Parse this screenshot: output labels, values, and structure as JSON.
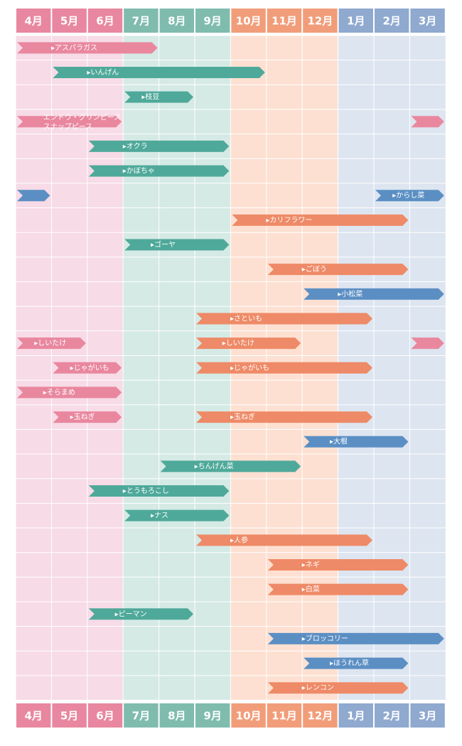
{
  "months": [
    "4月",
    "5月",
    "6月",
    "7月",
    "8月",
    "9月",
    "10月",
    "11月",
    "12月",
    "1月",
    "2月",
    "3月"
  ],
  "rows": [
    {
      "segments": [
        {
          "from": "4月",
          "to": "7月",
          "color": "#e9879f",
          "label": "▸アスパラガス"
        }
      ]
    },
    {
      "segments": [
        {
          "from": "5月",
          "to": "10月",
          "color": "#4fa99a",
          "label": "▸いんげん"
        }
      ]
    },
    {
      "segments": [
        {
          "from": "7月",
          "to": "8月",
          "color": "#4fa99a",
          "label": "▸枝豆"
        }
      ]
    },
    {
      "segments": [
        {
          "from": "4月",
          "to": "6月",
          "color": "#e9879f",
          "label": "エンドウ・グリンピース"
        },
        {
          "from": "3月",
          "to": "3月",
          "color": "#e9879f"
        }
      ],
      "label2": "スナップピース"
    },
    {
      "segments": [
        {
          "from": "6月",
          "to": "9月",
          "color": "#4fa99a",
          "label": "▸オクラ"
        }
      ]
    },
    {
      "segments": [
        {
          "from": "6月",
          "to": "9月",
          "color": "#4fa99a",
          "label": "▸かぼちゃ"
        }
      ]
    },
    {
      "segments": [
        {
          "from": "4月",
          "to": "4月",
          "color": "#5b8fc4"
        },
        {
          "from": "2月",
          "to": "3月",
          "color": "#5b8fc4",
          "label": "▸からし菜"
        }
      ]
    },
    {
      "segments": [
        {
          "from": "10月",
          "to": "2月",
          "color": "#ee8a67",
          "label": "▸カリフラワー"
        }
      ]
    },
    {
      "segments": [
        {
          "from": "7月",
          "to": "9月",
          "color": "#4fa99a",
          "label": "▸ゴーヤ"
        }
      ]
    },
    {
      "segments": [
        {
          "from": "11月",
          "to": "2月",
          "color": "#ee8a67",
          "label": "▸ごぼう"
        }
      ]
    },
    {
      "segments": [
        {
          "from": "12月",
          "to": "3月",
          "color": "#5b8fc4",
          "label": "▸小松菜"
        }
      ]
    },
    {
      "segments": [
        {
          "from": "9月",
          "to": "1月",
          "color": "#ee8a67",
          "label": "▸さといも"
        }
      ]
    },
    {
      "segments": [
        {
          "from": "4月",
          "to": "5月",
          "color": "#e9879f",
          "label": "▸しいたけ"
        },
        {
          "from": "9月",
          "to": "11月",
          "color": "#ee8a67",
          "label": "▸しいたけ"
        },
        {
          "from": "3月",
          "to": "3月",
          "color": "#e9879f"
        }
      ]
    },
    {
      "segments": [
        {
          "from": "5月",
          "to": "6月",
          "color": "#e9879f",
          "label": "▸じゃがいも"
        },
        {
          "from": "9月",
          "to": "1月",
          "color": "#ee8a67",
          "label": "▸じゃがいも"
        }
      ]
    },
    {
      "segments": [
        {
          "from": "4月",
          "to": "6月",
          "color": "#e9879f",
          "label": "▸そらまめ"
        }
      ]
    },
    {
      "segments": [
        {
          "from": "5月",
          "to": "6月",
          "color": "#e9879f",
          "label": "▸玉ねぎ"
        },
        {
          "from": "9月",
          "to": "1月",
          "color": "#ee8a67",
          "label": "▸玉ねぎ"
        }
      ]
    },
    {
      "segments": [
        {
          "from": "12月",
          "to": "2月",
          "color": "#5b8fc4",
          "label": "▸大根"
        }
      ]
    },
    {
      "segments": [
        {
          "from": "8月",
          "to": "11月",
          "color": "#4fa99a",
          "label": "▸ちんげん菜"
        }
      ]
    },
    {
      "segments": [
        {
          "from": "6月",
          "to": "9月",
          "color": "#4fa99a",
          "label": "▸とうもろこし"
        }
      ]
    },
    {
      "segments": [
        {
          "from": "7月",
          "to": "9月",
          "color": "#4fa99a",
          "label": "▸ナス"
        }
      ]
    },
    {
      "segments": [
        {
          "from": "9月",
          "to": "1月",
          "color": "#ee8a67",
          "label": "▸人参"
        }
      ]
    },
    {
      "segments": [
        {
          "from": "11月",
          "to": "2月",
          "color": "#ee8a67",
          "label": "▸ネギ"
        }
      ]
    },
    {
      "segments": [
        {
          "from": "11月",
          "to": "2月",
          "color": "#ee8a67",
          "label": "▸白菜"
        }
      ]
    },
    {
      "segments": [
        {
          "from": "6月",
          "to": "8月",
          "color": "#4fa99a",
          "label": "▸ピーマン"
        }
      ]
    },
    {
      "segments": [
        {
          "from": "11月",
          "to": "3月",
          "color": "#5b8fc4",
          "label": "▸ブロッコリー"
        }
      ]
    },
    {
      "segments": [
        {
          "from": "12月",
          "to": "2月",
          "color": "#5b8fc4",
          "label": "▸ほうれん草"
        }
      ]
    },
    {
      "segments": [
        {
          "from": "11月",
          "to": "2月",
          "color": "#ee8a67",
          "label": "▸レンコン"
        }
      ]
    }
  ]
}
